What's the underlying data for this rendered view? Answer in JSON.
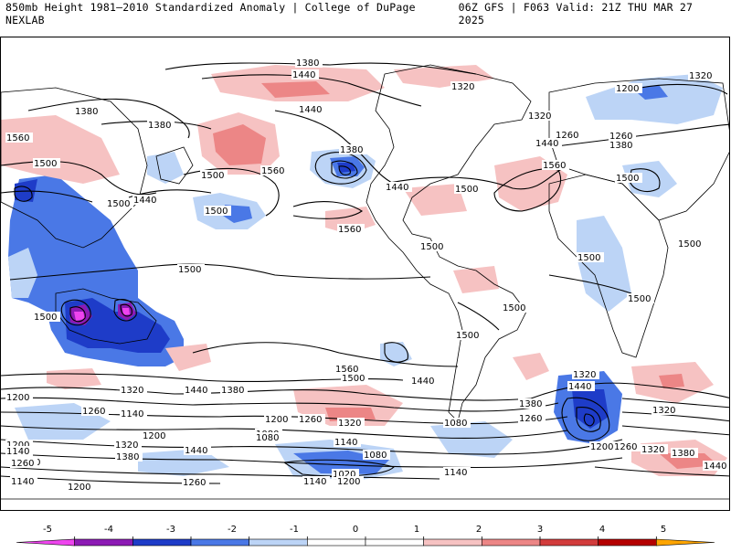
{
  "header": {
    "title": "850mb Height 1981–2010 Standardized Anomaly | College of DuPage NEXLAB",
    "run_info": "06Z GFS | F063 Valid: 21Z THU MAR 27 2025"
  },
  "map": {
    "contour_labels": [
      {
        "text": "1380"
      },
      {
        "text": "1440"
      },
      {
        "text": "1320"
      },
      {
        "text": "1380"
      },
      {
        "text": "1380"
      },
      {
        "text": "1440"
      },
      {
        "text": "1560"
      },
      {
        "text": "1500"
      },
      {
        "text": "1500"
      },
      {
        "text": "1560"
      },
      {
        "text": "1500"
      },
      {
        "text": "1440"
      },
      {
        "text": "1500"
      },
      {
        "text": "1560"
      },
      {
        "text": "1500"
      },
      {
        "text": "1500"
      },
      {
        "text": "1380"
      },
      {
        "text": "1440"
      },
      {
        "text": "1500"
      },
      {
        "text": "1320"
      },
      {
        "text": "1320"
      },
      {
        "text": "1260"
      },
      {
        "text": "1200"
      },
      {
        "text": "1440"
      },
      {
        "text": "1380"
      },
      {
        "text": "1260"
      },
      {
        "text": "1560"
      },
      {
        "text": "1500"
      },
      {
        "text": "1500"
      },
      {
        "text": "1500"
      },
      {
        "text": "1500"
      },
      {
        "text": "1500"
      },
      {
        "text": "1500"
      },
      {
        "text": "1500"
      },
      {
        "text": "1560"
      },
      {
        "text": "1500"
      },
      {
        "text": "1440"
      },
      {
        "text": "1380"
      },
      {
        "text": "1320"
      },
      {
        "text": "1200"
      },
      {
        "text": "1260"
      },
      {
        "text": "1200"
      },
      {
        "text": "1320"
      },
      {
        "text": "1440"
      },
      {
        "text": "1380"
      },
      {
        "text": "1260"
      },
      {
        "text": "1140"
      },
      {
        "text": "1200"
      },
      {
        "text": "1320"
      },
      {
        "text": "1080"
      },
      {
        "text": "1140"
      },
      {
        "text": "1200"
      },
      {
        "text": "1380"
      },
      {
        "text": "1440"
      },
      {
        "text": "1260"
      },
      {
        "text": "1320"
      },
      {
        "text": "1140"
      },
      {
        "text": "1080"
      },
      {
        "text": "1200"
      },
      {
        "text": "1260"
      },
      {
        "text": "1320"
      },
      {
        "text": "1380"
      },
      {
        "text": "1440"
      },
      {
        "text": "1080"
      },
      {
        "text": "1140"
      },
      {
        "text": "1080"
      },
      {
        "text": "1020"
      },
      {
        "text": "1140"
      },
      {
        "text": "1200"
      },
      {
        "text": "1260"
      },
      {
        "text": "1380"
      },
      {
        "text": "1140"
      },
      {
        "text": "1200"
      },
      {
        "text": "1260"
      },
      {
        "text": "1320"
      },
      {
        "text": "1440"
      }
    ],
    "colors": {
      "neg5": "#ee44ee",
      "neg4": "#8c1ab4",
      "neg3": "#1e3cc8",
      "neg2": "#4a78e6",
      "neg1": "#bcd4f6",
      "pos1": "#f6c2c2",
      "pos2": "#ec8686",
      "pos3": "#d23c3c",
      "pos4": "#b40000",
      "pos5": "#ffa500",
      "contour": "#000000",
      "coast": "#000000"
    }
  },
  "colorbar": {
    "ticks": [
      "-5",
      "-4",
      "-3",
      "-2",
      "-1",
      "0",
      "1",
      "2",
      "3",
      "4",
      "5"
    ]
  }
}
